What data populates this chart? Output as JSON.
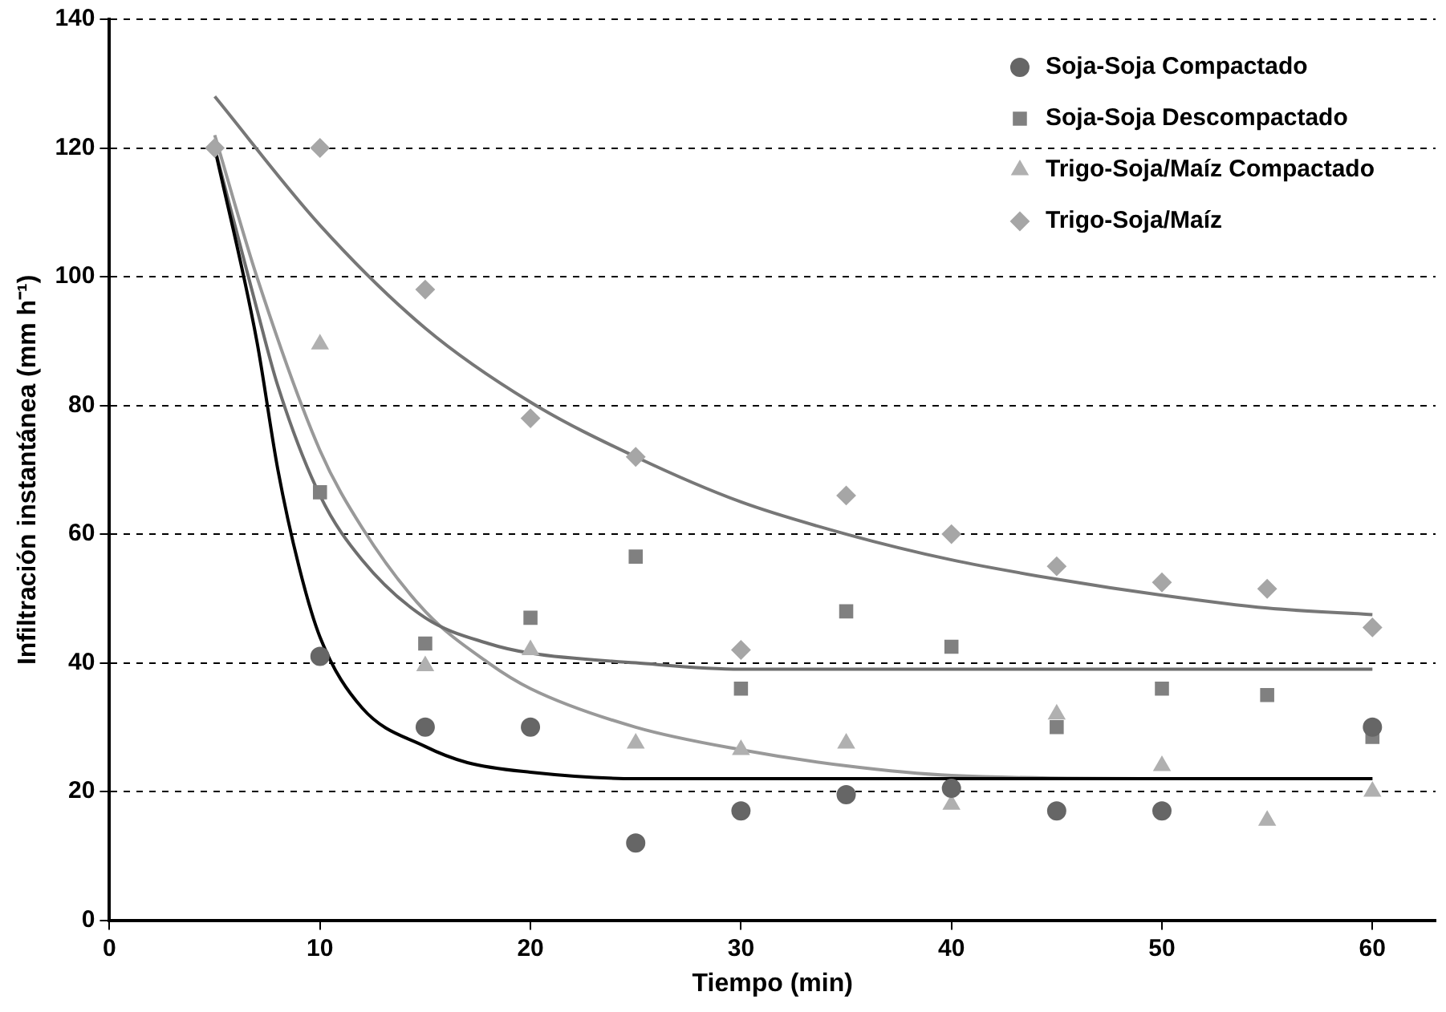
{
  "chart_data": {
    "type": "scatter",
    "xlabel": "Tiempo (min)",
    "ylabel": "Infiltración instantánea (mm h⁻¹)",
    "x": [
      5,
      10,
      15,
      20,
      25,
      30,
      35,
      40,
      45,
      50,
      55,
      60
    ],
    "series": [
      {
        "name": "Soja-Soja Compactado",
        "color": "#666666",
        "marker": "circle",
        "values": [
          null,
          41,
          30,
          30,
          12,
          17,
          19.5,
          20.5,
          17,
          17,
          null,
          30
        ]
      },
      {
        "name": "Soja-Soja Descompactado",
        "color": "#808080",
        "marker": "square",
        "values": [
          null,
          66.5,
          43,
          47,
          56.5,
          36,
          48,
          42.5,
          30,
          36,
          35,
          28.5
        ]
      },
      {
        "name": "Trigo-Soja/Maíz Compactado",
        "color": "#b0b0b0",
        "marker": "triangle",
        "values": [
          null,
          89.5,
          39.5,
          42,
          27.5,
          26.5,
          27.5,
          18,
          32,
          24,
          15.5,
          20
        ]
      },
      {
        "name": "Trigo-Soja/Maíz",
        "color": "#a6a6a6",
        "marker": "diamond",
        "values": [
          120,
          120,
          98,
          78,
          72,
          42,
          66,
          60,
          55,
          52.5,
          51.5,
          45.5
        ]
      },
      {
        "type": "line",
        "color": "#000000",
        "x": [
          5,
          7,
          8,
          9,
          10,
          12,
          15,
          17,
          20,
          25,
          30,
          60
        ],
        "values": [
          120,
          90,
          70,
          55,
          44,
          33,
          27,
          24.5,
          23,
          22,
          22,
          22
        ]
      },
      {
        "type": "line",
        "color": "#6e6e6e",
        "x": [
          5,
          7,
          8,
          10,
          12,
          15,
          18,
          20,
          25,
          30,
          40,
          60
        ],
        "values": [
          120,
          95,
          83,
          66,
          56,
          47,
          43,
          41.5,
          40,
          39,
          39,
          39
        ]
      },
      {
        "type": "line",
        "color": "#999999",
        "x": [
          5,
          7,
          10,
          12,
          15,
          18,
          20,
          25,
          30,
          35,
          40,
          50,
          60
        ],
        "values": [
          122,
          100,
          73,
          61,
          48,
          40,
          36,
          30,
          26.5,
          24,
          22.5,
          22,
          22
        ]
      },
      {
        "type": "line",
        "color": "#777777",
        "x": [
          5,
          10,
          15,
          20,
          25,
          30,
          35,
          40,
          45,
          50,
          55,
          60
        ],
        "values": [
          128,
          108,
          92,
          80.5,
          72,
          65,
          60,
          56,
          53,
          50.5,
          48.5,
          47.5
        ]
      }
    ],
    "xlim": [
      0,
      63
    ],
    "xticks": [
      0,
      10,
      20,
      30,
      40,
      50,
      60
    ],
    "ylim": [
      0,
      140
    ],
    "yticks": [
      0,
      20,
      40,
      60,
      80,
      100,
      120,
      140
    ],
    "grid": "y",
    "legend": "top right",
    "line_style": "solid"
  }
}
